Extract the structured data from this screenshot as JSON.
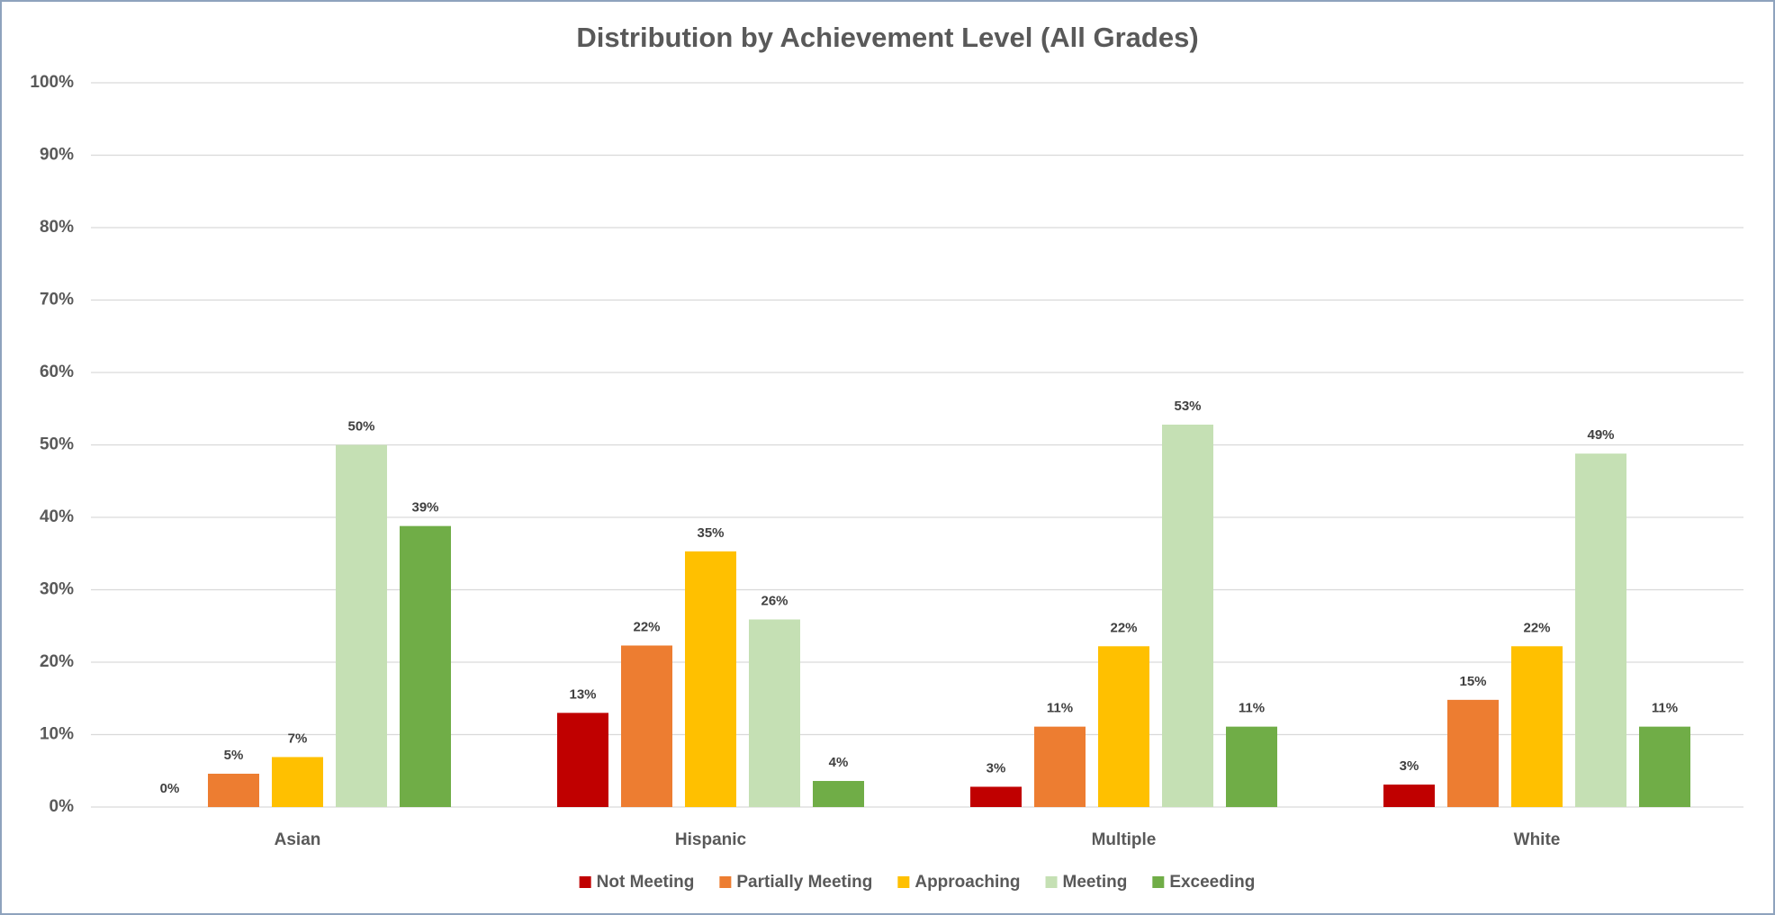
{
  "chart_data": {
    "type": "bar",
    "title": "Distribution by Achievement Level (All Grades)",
    "categories": [
      "Asian",
      "Hispanic",
      "Multiple",
      "White"
    ],
    "series": [
      {
        "name": "Not Meeting",
        "color": "#c00000",
        "values": [
          0,
          13.0,
          2.8,
          3.1
        ],
        "value_labels": [
          "0%",
          "13%",
          "3%",
          "3%"
        ]
      },
      {
        "name": "Partially Meeting",
        "color": "#ed7d31",
        "values": [
          4.6,
          22.3,
          11.1,
          14.8
        ],
        "value_labels": [
          "5%",
          "22%",
          "11%",
          "15%"
        ]
      },
      {
        "name": "Approaching",
        "color": "#ffc000",
        "values": [
          6.9,
          35.3,
          22.2,
          22.2
        ],
        "value_labels": [
          "7%",
          "35%",
          "22%",
          "22%"
        ]
      },
      {
        "name": "Meeting",
        "color": "#c5e0b4",
        "values": [
          50.0,
          25.9,
          52.8,
          48.8
        ],
        "value_labels": [
          "50%",
          "26%",
          "53%",
          "49%"
        ]
      },
      {
        "name": "Exceeding",
        "color": "#70ad47",
        "values": [
          38.8,
          3.6,
          11.1,
          11.1
        ],
        "value_labels": [
          "39%",
          "4%",
          "11%",
          "11%"
        ]
      }
    ],
    "ylim": [
      0,
      100
    ],
    "yticks": [
      {
        "value": 0,
        "label": "0%"
      },
      {
        "value": 10,
        "label": "10%"
      },
      {
        "value": 20,
        "label": "20%"
      },
      {
        "value": 30,
        "label": "30%"
      },
      {
        "value": 40,
        "label": "40%"
      },
      {
        "value": 50,
        "label": "50%"
      },
      {
        "value": 60,
        "label": "60%"
      },
      {
        "value": 70,
        "label": "70%"
      },
      {
        "value": 80,
        "label": "80%"
      },
      {
        "value": 90,
        "label": "90%"
      },
      {
        "value": 100,
        "label": "100%"
      }
    ],
    "grid": true,
    "legend": "bottom"
  }
}
